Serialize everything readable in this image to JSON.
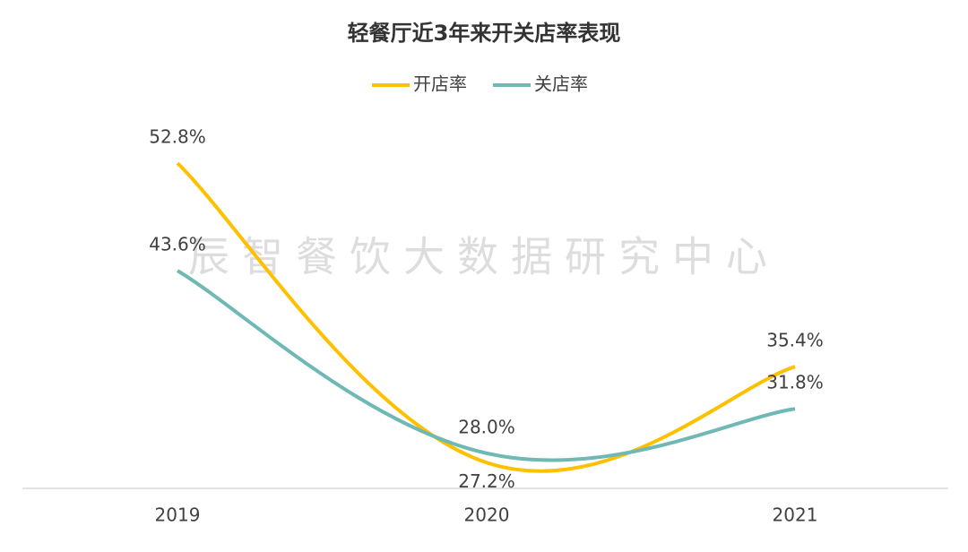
{
  "chart_data": {
    "type": "line",
    "title": "轻餐厅近3年来开关店率表现",
    "watermark": "辰智餐饮大数据研究中心",
    "categories": [
      "2019",
      "2020",
      "2021"
    ],
    "series": [
      {
        "name": "开店率",
        "color": "#ffc000",
        "values": [
          52.8,
          27.2,
          35.4
        ],
        "value_labels": [
          "52.8%",
          "27.2%",
          "35.4%"
        ]
      },
      {
        "name": "关店率",
        "color": "#70b8b4",
        "values": [
          43.6,
          28.0,
          31.8
        ],
        "value_labels": [
          "43.6%",
          "28.0%",
          "31.8%"
        ]
      }
    ],
    "ylim": [
      25,
      60
    ],
    "legend": "top",
    "grid": false
  }
}
